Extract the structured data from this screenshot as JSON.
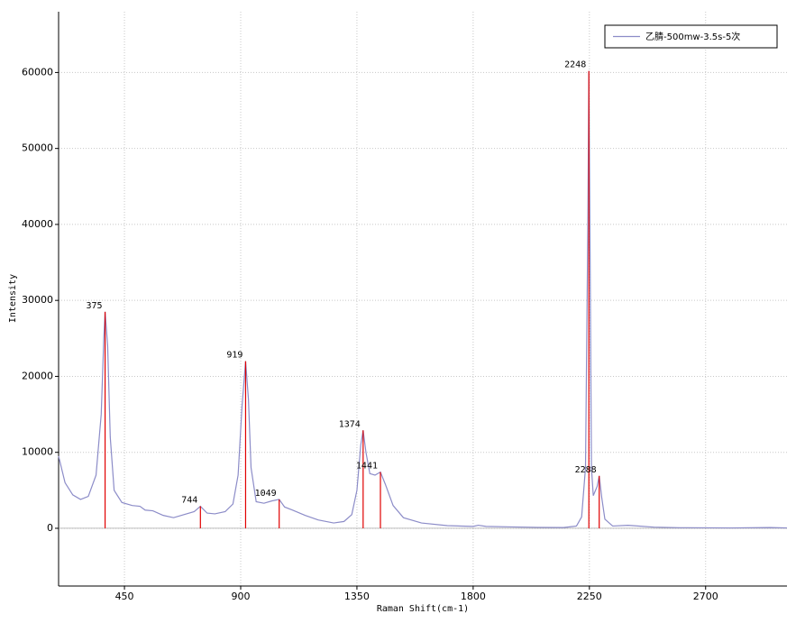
{
  "chart_data": {
    "type": "line",
    "xlabel": "Raman Shift(cm-1)",
    "ylabel": "Intensity",
    "xlim": [
      195,
      3015
    ],
    "ylim": [
      -7600,
      68000
    ],
    "xticks": [
      450,
      900,
      1350,
      1800,
      2250,
      2700
    ],
    "yticks": [
      0,
      10000,
      20000,
      30000,
      40000,
      50000,
      60000
    ],
    "grid": true,
    "legend": "top-right",
    "x": [
      195,
      220,
      250,
      280,
      310,
      340,
      360,
      370,
      375,
      385,
      395,
      410,
      440,
      480,
      510,
      530,
      560,
      600,
      640,
      680,
      720,
      744,
      770,
      800,
      840,
      870,
      890,
      905,
      919,
      930,
      940,
      960,
      990,
      1020,
      1049,
      1070,
      1100,
      1150,
      1200,
      1260,
      1300,
      1330,
      1350,
      1365,
      1374,
      1385,
      1400,
      1420,
      1441,
      1460,
      1490,
      1530,
      1600,
      1700,
      1800,
      1820,
      1850,
      1950,
      2050,
      2150,
      2200,
      2220,
      2235,
      2244,
      2248,
      2252,
      2258,
      2265,
      2280,
      2288,
      2298,
      2310,
      2340,
      2400,
      2500,
      2600,
      2800,
      2950,
      3015
    ],
    "series": [
      {
        "name": "乙腈-500mw-3.5s-5次",
        "color": "#8c8cc8",
        "values": [
          9500,
          6000,
          4400,
          3800,
          4200,
          7000,
          15000,
          25000,
          28500,
          24000,
          12000,
          5000,
          3400,
          3000,
          2900,
          2400,
          2300,
          1700,
          1400,
          1800,
          2200,
          2900,
          2000,
          1900,
          2200,
          3200,
          7000,
          16000,
          22000,
          17000,
          8000,
          3500,
          3300,
          3600,
          3800,
          2800,
          2400,
          1700,
          1100,
          700,
          900,
          1800,
          5000,
          11000,
          12900,
          10000,
          7200,
          7000,
          7400,
          5800,
          3000,
          1400,
          700,
          350,
          250,
          400,
          250,
          180,
          120,
          100,
          300,
          1500,
          8000,
          40000,
          60200,
          40000,
          8000,
          4300,
          5500,
          6900,
          4000,
          1200,
          300,
          400,
          150,
          80,
          50,
          100,
          50
        ]
      }
    ],
    "peak_color": "#e00000",
    "peaks": [
      {
        "x": 375,
        "value": 28500
      },
      {
        "x": 744,
        "value": 2900
      },
      {
        "x": 919,
        "value": 22000
      },
      {
        "x": 1049,
        "value": 3800
      },
      {
        "x": 1374,
        "value": 12900
      },
      {
        "x": 1441,
        "value": 7400
      },
      {
        "x": 2248,
        "value": 60200
      },
      {
        "x": 2288,
        "value": 6900
      }
    ]
  }
}
